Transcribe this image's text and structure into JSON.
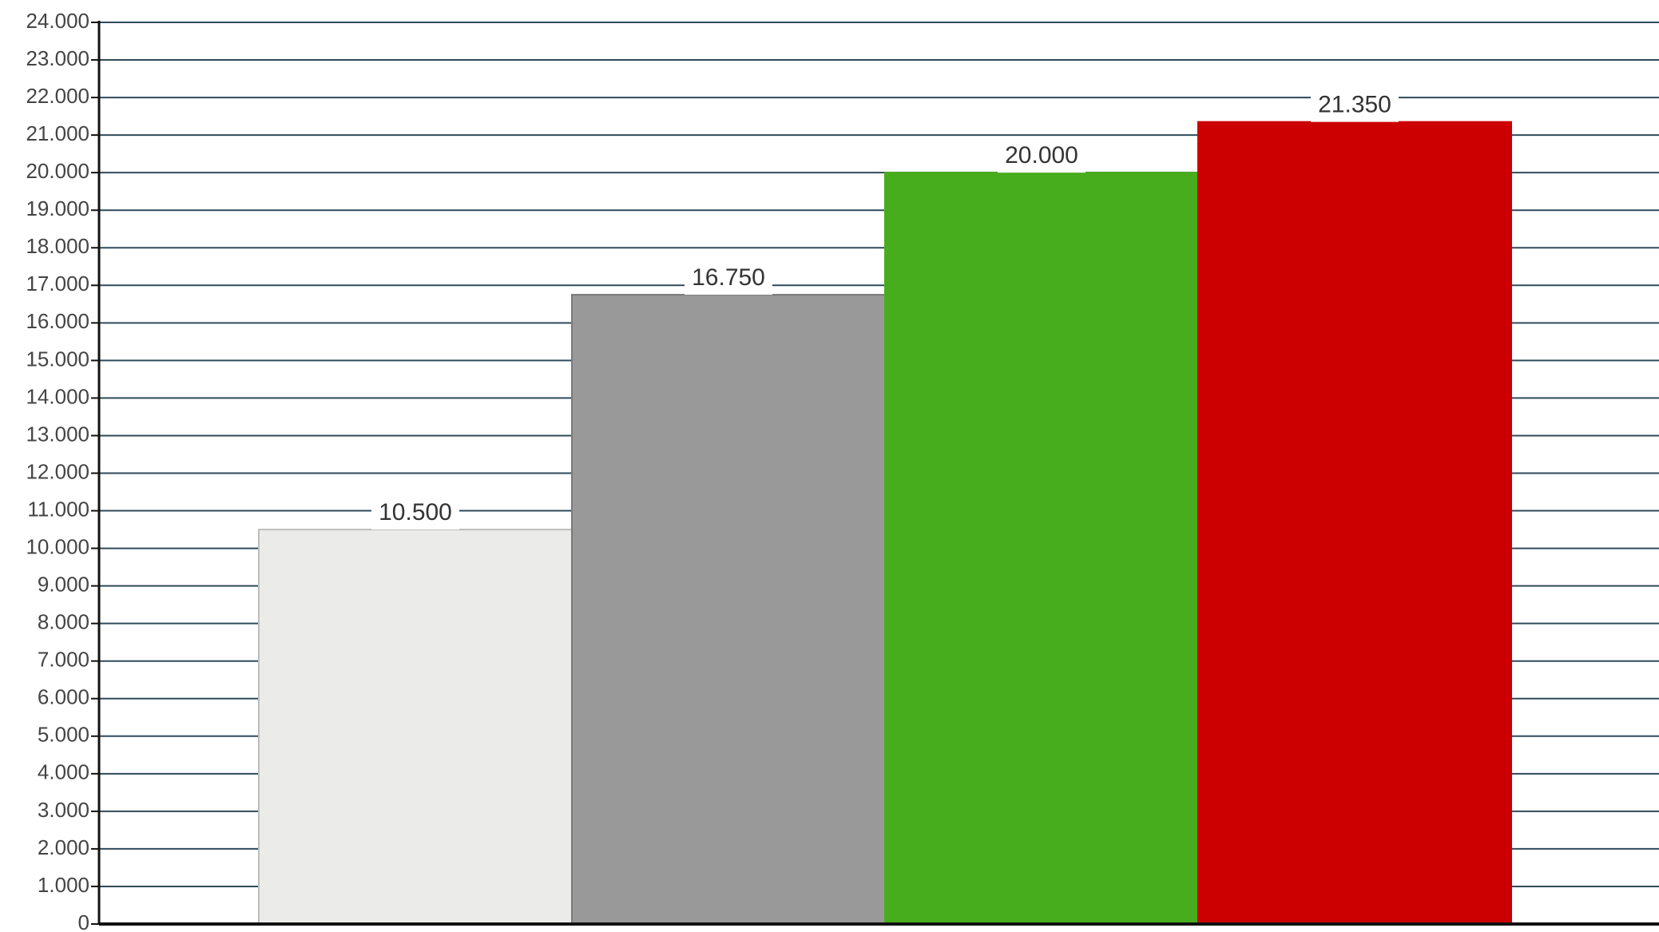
{
  "chart_data": {
    "type": "bar",
    "categories": [
      "",
      "",
      "",
      ""
    ],
    "values": [
      10500,
      16750,
      20000,
      21350
    ],
    "data_labels": [
      "10.500",
      "16.750",
      "20.000",
      "21.350"
    ],
    "y_tick_labels": [
      "0",
      "1.000",
      "2.000",
      "3.000",
      "4.000",
      "5.000",
      "6.000",
      "7.000",
      "8.000",
      "9.000",
      "10.000",
      "11.000",
      "12.000",
      "13.000",
      "14.000",
      "15.000",
      "16.000",
      "17.000",
      "18.000",
      "19.000",
      "20.000",
      "21.000",
      "22.000",
      "23.000",
      "24.000"
    ],
    "ylim": [
      0,
      24000
    ],
    "y_tick_step": 1000,
    "grid": true,
    "legend": "none",
    "title": "",
    "xlabel": "",
    "ylabel": "",
    "colors": {
      "bars": [
        "#ebebea",
        "#999999",
        "#48ad1c",
        "#cc0000"
      ],
      "bar_edges": [
        "#bdbdbd",
        "#7a7a7a",
        "#48ad1c",
        "#cc0000"
      ],
      "grid": "#2f4a5a",
      "axis": "#111111"
    }
  }
}
